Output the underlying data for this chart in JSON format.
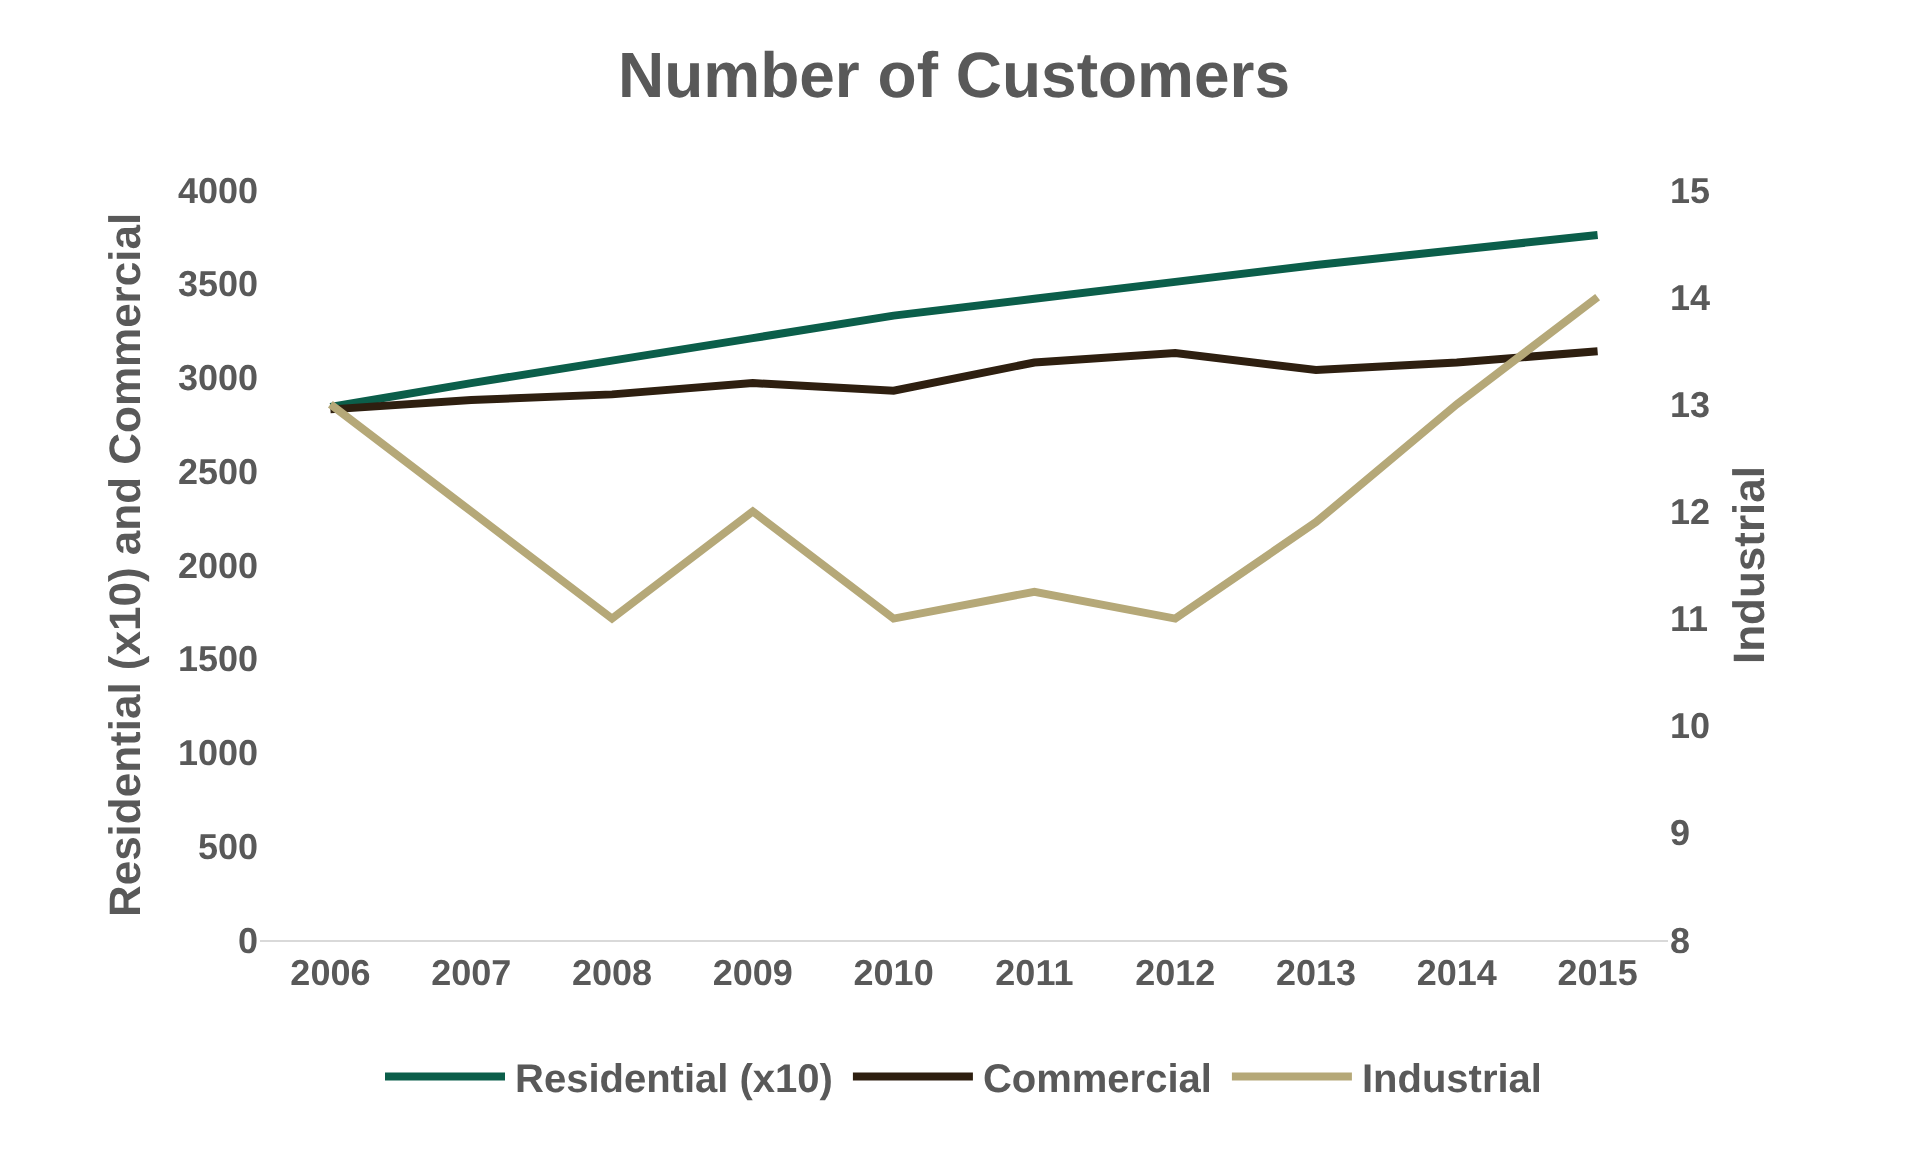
{
  "chart_data": {
    "type": "line",
    "title": "Number of Customers",
    "ylabel": "Residential (x10) and Commercial",
    "y2label": "Industrial",
    "categories": [
      "2006",
      "2007",
      "2008",
      "2009",
      "2010",
      "2011",
      "2012",
      "2013",
      "2014",
      "2015"
    ],
    "series": [
      {
        "name": "Residential (x10)",
        "color": "#0b5e4a",
        "values": [
          2843,
          2970,
          3090,
          3210,
          3330,
          3420,
          3510,
          3600,
          3680,
          3760
        ]
      },
      {
        "name": "Commercial",
        "color": "#2e1f10",
        "values": [
          2830,
          2880,
          2910,
          2970,
          2930,
          3080,
          3130,
          3040,
          3080,
          3140
        ]
      },
      {
        "name": "Industrial",
        "color": "#b5a878",
        "axis": "y2",
        "values": [
          13,
          12,
          11,
          12,
          11,
          11.25,
          11,
          11.9,
          13,
          14
        ]
      }
    ],
    "ylim": [
      0,
      4000
    ],
    "yticks": [
      0,
      500,
      1000,
      1500,
      2000,
      2500,
      3000,
      3500,
      4000
    ],
    "y2lim": [
      8,
      15
    ],
    "y2ticks": [
      8,
      9,
      10,
      11,
      12,
      13,
      14,
      15
    ],
    "grid": false,
    "legend": "bottom",
    "marker": "none",
    "line_style": "solid"
  }
}
